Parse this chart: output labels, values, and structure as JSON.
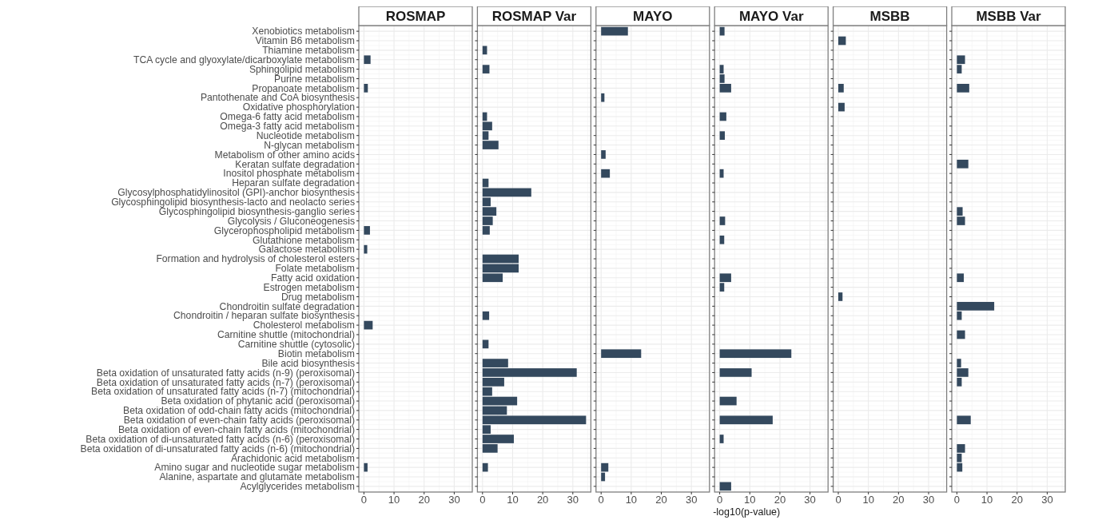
{
  "chart_data": [
    {
      "type": "bar",
      "orientation": "horizontal",
      "title": "ROSMAP",
      "grid": true,
      "xlim": [
        -1.7,
        36
      ],
      "xticks": [
        0,
        10,
        20,
        30
      ],
      "color": "#34495e",
      "categories": [
        "Xenobiotics metabolism",
        "Vitamin B6 metabolism",
        "Thiamine metabolism",
        "TCA cycle and glyoxylate/dicarboxylate metabolism",
        "Sphingolipid metabolism",
        "Purine metabolism",
        "Propanoate metabolism",
        "Pantothenate and CoA biosynthesis",
        "Oxidative phosphorylation",
        "Omega-6 fatty acid metabolism",
        "Omega-3 fatty acid metabolism",
        "Nucleotide metabolism",
        "N-glycan metabolism",
        "Metabolism of other amino acids",
        "Keratan sulfate degradation",
        "Inositol phosphate metabolism",
        "Heparan sulfate degradation",
        "Glycosylphosphatidylinositol (GPI)-anchor biosynthesis",
        "Glycosphingolipid biosynthesis-lacto and neolacto series",
        "Glycosphingolipid biosynthesis-ganglio series",
        "Glycolysis / Gluconeogenesis",
        "Glycerophospholipid metabolism",
        "Glutathione metabolism",
        "Galactose metabolism",
        "Formation and hydrolysis of cholesterol esters",
        "Folate metabolism",
        "Fatty acid oxidation",
        "Estrogen metabolism",
        "Drug metabolism",
        "Chondroitin sulfate degradation",
        "Chondroitin / heparan sulfate biosynthesis",
        "Cholesterol metabolism",
        "Carnitine shuttle (mitochondrial)",
        "Carnitine shuttle (cytosolic)",
        "Biotin metabolism",
        "Bile acid biosynthesis",
        "Beta oxidation of unsaturated fatty acids (n-9) (peroxisomal)",
        "Beta oxidation of unsaturated fatty acids (n-7) (peroxisomal)",
        "Beta oxidation of unsaturated fatty acids (n-7) (mitochondrial)",
        "Beta oxidation of phytanic acid (peroxisomal)",
        "Beta oxidation of odd-chain fatty acids (mitochondrial)",
        "Beta oxidation of even-chain fatty acids (peroxisomal)",
        "Beta oxidation of even-chain fatty acids (mitochondrial)",
        "Beta oxidation of di-unsaturated fatty acids (n-6) (peroxisomal)",
        "Beta oxidation of di-unsaturated fatty acids (n-6) (mitochondrial)",
        "Arachidonic acid metabolism",
        "Amino sugar and nucleotide sugar metabolism",
        "Alanine, aspartate and glutamate metabolism",
        "Acylglycerides metabolism"
      ],
      "values": [
        null,
        null,
        null,
        2.2,
        null,
        null,
        1.3,
        null,
        null,
        null,
        null,
        null,
        null,
        null,
        null,
        null,
        null,
        null,
        null,
        null,
        null,
        2,
        null,
        1.1,
        null,
        null,
        null,
        null,
        null,
        null,
        null,
        2.9,
        null,
        null,
        null,
        null,
        null,
        null,
        null,
        null,
        null,
        null,
        null,
        null,
        null,
        null,
        1.2,
        null,
        null
      ]
    },
    {
      "type": "bar",
      "orientation": "horizontal",
      "title": "ROSMAP Var",
      "grid": true,
      "tick_labels": "x",
      "xlim": [
        -1.7,
        36
      ],
      "xticks": [
        0,
        10,
        20,
        30
      ],
      "color": "#34495e",
      "values": [
        null,
        null,
        1.5,
        null,
        2.3,
        null,
        null,
        null,
        null,
        1.5,
        3.2,
        2,
        5.3,
        null,
        null,
        null,
        2,
        16.2,
        2.7,
        4.6,
        3.4,
        2.4,
        null,
        null,
        12,
        12,
        6.7,
        null,
        null,
        null,
        2.2,
        null,
        null,
        2,
        null,
        8.5,
        31.3,
        7.2,
        3.2,
        11.5,
        8.1,
        34.4,
        2.7,
        10.4,
        5,
        null,
        1.8,
        null,
        null
      ]
    },
    {
      "type": "bar",
      "orientation": "horizontal",
      "title": "MAYO",
      "grid": true,
      "tick_labels": "x",
      "xlim": [
        -1.7,
        36
      ],
      "xticks": [
        0,
        10,
        20,
        30
      ],
      "color": "#34495e",
      "values": [
        8.9,
        null,
        null,
        null,
        null,
        null,
        null,
        1.1,
        null,
        null,
        null,
        null,
        null,
        1.5,
        null,
        2.9,
        null,
        null,
        null,
        null,
        null,
        null,
        null,
        null,
        null,
        null,
        null,
        null,
        null,
        null,
        null,
        null,
        null,
        null,
        13.3,
        null,
        null,
        null,
        null,
        null,
        null,
        null,
        null,
        null,
        null,
        null,
        2.4,
        1.3,
        null
      ]
    },
    {
      "type": "bar",
      "orientation": "horizontal",
      "title": "MAYO Var",
      "xlabel": "-log10(p-value)",
      "grid": true,
      "tick_labels": "x",
      "xlim": [
        -1.7,
        36
      ],
      "xticks": [
        0,
        10,
        20,
        30
      ],
      "color": "#34495e",
      "values": [
        1.6,
        null,
        null,
        null,
        1.3,
        1.6,
        3.8,
        null,
        null,
        2.2,
        null,
        1.7,
        null,
        null,
        null,
        1.3,
        null,
        null,
        null,
        null,
        1.8,
        null,
        1.5,
        null,
        null,
        null,
        3.8,
        1.5,
        null,
        null,
        null,
        null,
        null,
        null,
        23.8,
        null,
        10.6,
        null,
        null,
        5.6,
        null,
        17.6,
        null,
        1.3,
        null,
        null,
        null,
        null,
        3.8
      ]
    },
    {
      "type": "bar",
      "orientation": "horizontal",
      "title": "MSBB",
      "grid": true,
      "tick_labels": "x",
      "xlim": [
        -1.7,
        36
      ],
      "xticks": [
        0,
        10,
        20,
        30
      ],
      "color": "#34495e",
      "values": [
        null,
        2.5,
        null,
        null,
        null,
        null,
        1.8,
        null,
        2.1,
        null,
        null,
        null,
        null,
        null,
        null,
        null,
        null,
        null,
        null,
        null,
        null,
        null,
        null,
        null,
        null,
        null,
        null,
        null,
        1.4,
        null,
        null,
        null,
        null,
        null,
        null,
        null,
        null,
        null,
        null,
        null,
        null,
        null,
        null,
        null,
        null,
        null,
        null,
        null,
        null
      ]
    },
    {
      "type": "bar",
      "orientation": "horizontal",
      "title": "MSBB Var",
      "grid": true,
      "tick_labels": "x",
      "xlim": [
        -1.7,
        36
      ],
      "xticks": [
        0,
        10,
        20,
        30
      ],
      "color": "#34495e",
      "values": [
        null,
        null,
        null,
        2.7,
        1.6,
        null,
        4.1,
        null,
        null,
        null,
        null,
        null,
        null,
        null,
        3.8,
        null,
        null,
        null,
        null,
        1.9,
        2.7,
        null,
        null,
        null,
        null,
        null,
        2.3,
        null,
        null,
        12.4,
        1.6,
        null,
        2.7,
        null,
        null,
        1.4,
        3.8,
        1.6,
        null,
        null,
        null,
        4.6,
        null,
        null,
        2.7,
        1.6,
        1.8,
        null,
        null
      ]
    }
  ]
}
